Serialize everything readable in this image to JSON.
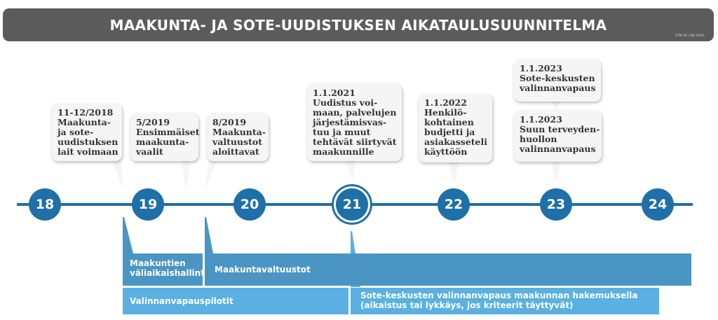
{
  "header": {
    "title": "MAAKUNTA- JA SOTE-UUDISTUKSEN AIKATAULUSUUNNITELMA",
    "stamp": "STM 28 / 06/ 2018"
  },
  "timeline": {
    "years": [
      "18",
      "19",
      "20",
      "21",
      "22",
      "23",
      "24"
    ],
    "current_year": "21"
  },
  "milestones": [
    {
      "lines": [
        "11-12/2018",
        "Maakunta-",
        "ja sote-",
        "uudistuksen",
        "lait voimaan"
      ]
    },
    {
      "lines": [
        "5/2019",
        "Ensimmäiset",
        "maakunta-",
        "vaalit"
      ]
    },
    {
      "lines": [
        "8/2019",
        "Maakunta-",
        "valtuustot",
        "aloittavat"
      ]
    },
    {
      "lines": [
        "1.1.2021",
        "Uudistus voi-",
        "maan, palvelujen",
        "järjestämisvas-",
        "tuu ja muut",
        "tehtävät siirtyvät",
        "maakunnille"
      ]
    },
    {
      "lines": [
        "1.1.2022",
        "Henkilö-",
        "kohtainen",
        "budjetti ja",
        "asiakasseteli",
        "käyttöön"
      ]
    },
    {
      "lines": [
        "1.1.2023",
        "Sote-keskusten",
        "valinnanvapaus"
      ]
    },
    {
      "lines": [
        "1.1.2023",
        "Suun terveyden-",
        "huollon",
        "valinnanvapaus"
      ]
    }
  ],
  "phases": [
    {
      "lines": [
        "Maakuntien",
        "väliaikaishallinto"
      ]
    },
    {
      "lines": [
        "Maakuntavaltuustot"
      ]
    },
    {
      "lines": [
        "Valinnanvapauspilotit"
      ]
    },
    {
      "lines": [
        "Sote-keskusten valinnanvapaus maakunnan hakemuksella",
        "(aikaistus tai lykkäys, jos kriteerit täyttyvät)"
      ]
    }
  ],
  "colors": {
    "title_bar": "#5b5b5b",
    "axis": "#1f6fa8",
    "phase_dark": "#4a95c4",
    "phase_light": "#5ab0e2",
    "bubble": "#f5f5f5"
  }
}
